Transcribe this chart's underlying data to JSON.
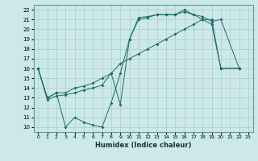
{
  "xlabel": "Humidex (Indice chaleur)",
  "bg_color": "#cce8e8",
  "grid_color": "#aacccc",
  "line_color": "#1a6b6b",
  "xlim": [
    -0.5,
    23.5
  ],
  "ylim": [
    9.5,
    22.5
  ],
  "xticks": [
    0,
    1,
    2,
    3,
    4,
    5,
    6,
    7,
    8,
    9,
    10,
    11,
    12,
    13,
    14,
    15,
    16,
    17,
    18,
    19,
    20,
    21,
    22,
    23
  ],
  "yticks": [
    10,
    11,
    12,
    13,
    14,
    15,
    16,
    17,
    18,
    19,
    20,
    21,
    22
  ],
  "line1_x": [
    0,
    1,
    2,
    3,
    4,
    5,
    6,
    7,
    8,
    9,
    10,
    11,
    12,
    13,
    14,
    15,
    16,
    17,
    18,
    19,
    20,
    22
  ],
  "line1_y": [
    16,
    12.8,
    13.2,
    13.3,
    13.5,
    13.8,
    14.0,
    14.3,
    15.5,
    12.3,
    19.0,
    21.2,
    21.3,
    21.5,
    21.5,
    21.5,
    22.0,
    21.5,
    21.3,
    20.8,
    21.0,
    16.0
  ],
  "line2_x": [
    0,
    1,
    2,
    3,
    4,
    5,
    6,
    7,
    8,
    9,
    10,
    11,
    12,
    13,
    14,
    15,
    16,
    17,
    18,
    19,
    20,
    22
  ],
  "line2_y": [
    16,
    13.0,
    13.5,
    10.0,
    11.0,
    10.5,
    10.2,
    10.0,
    12.5,
    15.5,
    19.0,
    21.0,
    21.2,
    21.5,
    21.5,
    21.5,
    21.8,
    21.5,
    21.0,
    20.5,
    16.0,
    16.0
  ],
  "line3_x": [
    0,
    1,
    2,
    3,
    4,
    5,
    6,
    7,
    8,
    9,
    10,
    11,
    12,
    13,
    14,
    15,
    16,
    17,
    18,
    19,
    20,
    22
  ],
  "line3_y": [
    16,
    13.0,
    13.5,
    13.5,
    14.0,
    14.2,
    14.5,
    15.0,
    15.5,
    16.5,
    17.0,
    17.5,
    18.0,
    18.5,
    19.0,
    19.5,
    20.0,
    20.5,
    21.0,
    21.0,
    16.0,
    16.0
  ]
}
